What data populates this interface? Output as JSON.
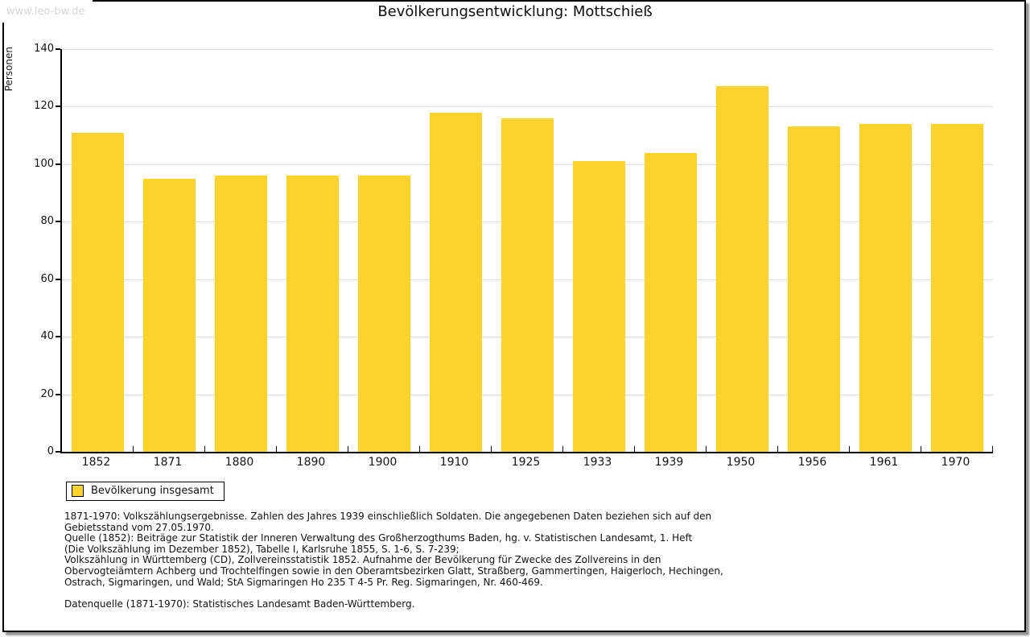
{
  "page": {
    "watermark": "www.leo-bw.de",
    "title": "Bevölkerungsentwicklung: Mottschieß"
  },
  "chart_data": {
    "type": "bar",
    "title": "Bevölkerungsentwicklung: Mottschieß",
    "xlabel": "",
    "ylabel": "Personen",
    "ylim": [
      0,
      140
    ],
    "ytick_step": 20,
    "grid": true,
    "categories": [
      "1852",
      "1871",
      "1880",
      "1890",
      "1900",
      "1910",
      "1925",
      "1933",
      "1939",
      "1950",
      "1956",
      "1961",
      "1970"
    ],
    "values": [
      111,
      95,
      96,
      96,
      96,
      118,
      116,
      101,
      104,
      127,
      113,
      114,
      114
    ],
    "series_name": "Bevölkerung insgesamt",
    "bar_color": "#FCD32E",
    "legend_position": "bottom-left"
  },
  "legend": {
    "label": "Bevölkerung insgesamt",
    "swatch_color": "#FCD32E"
  },
  "footnotes": {
    "lines": [
      "1871-1970: Volkszählungsergebnisse. Zahlen des Jahres 1939 einschließlich Soldaten. Die angegebenen Daten beziehen sich auf den",
      "Gebietsstand vom 27.05.1970.",
      "Quelle (1852): Beiträge zur Statistik der Inneren Verwaltung des Großherzogthums Baden, hg. v. Statistischen Landesamt, 1. Heft",
      "(Die Volkszählung im Dezember 1852), Tabelle I, Karlsruhe 1855, S. 1-6, S. 7-239;",
      "Volkszählung in Württemberg (CD), Zollvereinsstatistik 1852. Aufnahme der Bevölkerung für Zwecke des Zollvereins in den",
      "Obervogteiämtern Achberg und Trochtelfingen sowie in den Oberamtsbezirken Glatt, Straßberg, Gammertingen, Haigerloch, Hechingen,",
      "Ostrach, Sigmaringen, und Wald; StA Sigmaringen Ho 235 T 4-5 Pr. Reg. Sigmaringen, Nr. 460-469."
    ],
    "datasource": "Datenquelle (1871-1970): Statistisches Landesamt Baden-Württemberg."
  },
  "colors": {
    "bar": "#FCD32E",
    "gridline": "#DEDEDE",
    "axis": "#000000",
    "watermark_text": "#D5D5D5",
    "shadow": "#999999",
    "background": "#FFFFFF"
  }
}
